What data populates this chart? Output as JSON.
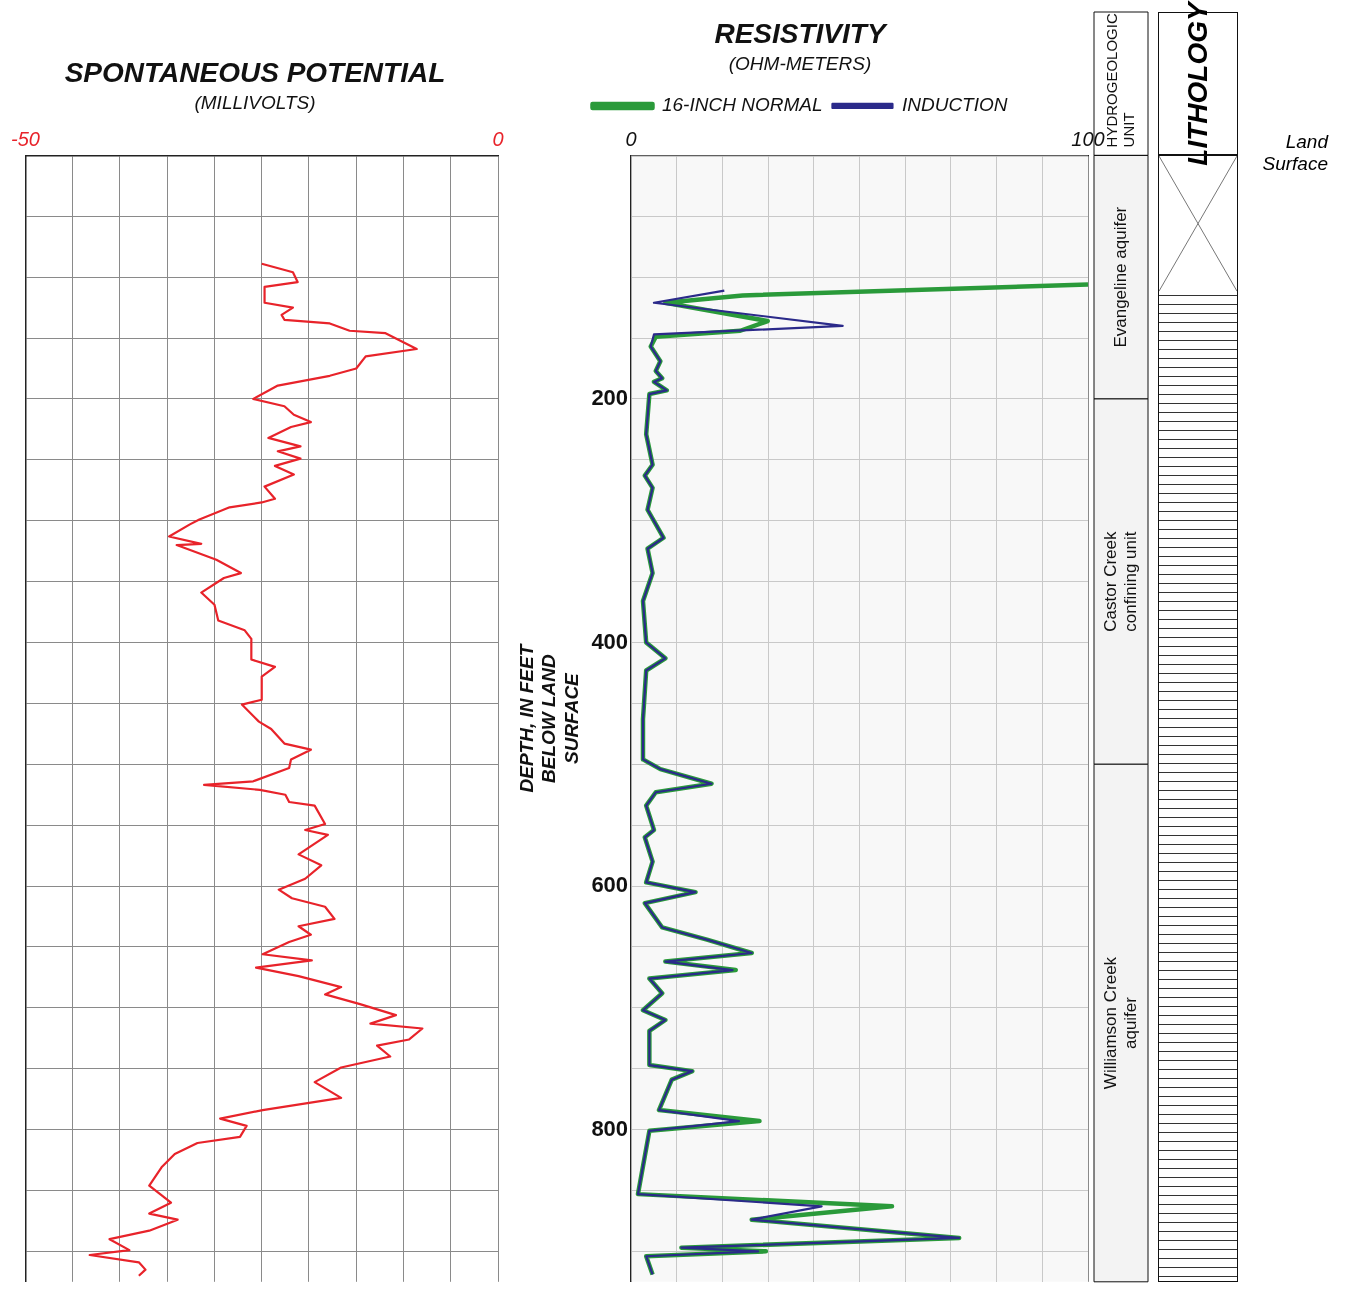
{
  "chart_data": [
    {
      "type": "line",
      "title": "SPONTANEOUS POTENTIAL",
      "subtitle": "(MILLIVOLTS)",
      "xlim": [
        -50,
        0
      ],
      "xticks": [
        -50,
        {
          "value": -45,
          "label": null
        },
        {
          "value": -40,
          "label": null
        },
        {
          "value": -35,
          "label": null
        },
        {
          "value": -30,
          "label": null
        },
        {
          "value": -25,
          "label": null
        },
        {
          "value": -20,
          "label": null
        },
        {
          "value": -15,
          "label": null
        },
        {
          "value": -10,
          "label": null
        },
        {
          "value": -5,
          "label": null
        },
        0
      ],
      "ylim": [
        925,
        0
      ],
      "yticks": [
        {
          "value": 0,
          "label": null
        },
        {
          "value": 50,
          "label": null
        },
        {
          "value": 100,
          "label": null
        },
        {
          "value": 150,
          "label": null
        },
        {
          "value": 200,
          "label": null
        },
        {
          "value": 250,
          "label": null
        },
        {
          "value": 300,
          "label": null
        },
        {
          "value": 350,
          "label": null
        },
        {
          "value": 400,
          "label": null
        },
        {
          "value": 450,
          "label": null
        },
        {
          "value": 500,
          "label": null
        },
        {
          "value": 550,
          "label": null
        },
        {
          "value": 600,
          "label": null
        },
        {
          "value": 650,
          "label": null
        },
        {
          "value": 700,
          "label": null
        },
        {
          "value": 750,
          "label": null
        },
        {
          "value": 800,
          "label": null
        },
        {
          "value": 850,
          "label": null
        },
        {
          "value": 900,
          "label": null
        }
      ],
      "tick_labels": "x",
      "grid": true,
      "legend": false,
      "series": [
        {
          "color": "#e8232a",
          "x": [
            -25,
            -21.7,
            -21.2,
            -24.7,
            -24.7,
            -21.7,
            -22.9,
            -22.6,
            -17.8,
            -15.7,
            -11.9,
            -8.6,
            -14,
            -15,
            -17.8,
            -23.3,
            -25.9,
            -22.6,
            -21.6,
            -19.8,
            -21.9,
            -24.3,
            -20.9,
            -23.3,
            -20.9,
            -23.6,
            -21.6,
            -24.7,
            -23.6,
            -25,
            -28.4,
            -31.6,
            -32.6,
            -34.8,
            -31.4,
            -34,
            -29.8,
            -27.2,
            -29,
            -31.4,
            -30,
            -29.6,
            -26.8,
            -26.1,
            -26.1,
            -23.6,
            -25,
            -25,
            -27.1,
            -25.3,
            -24,
            -22.6,
            -19.8,
            -21.9,
            -22.1,
            -25.9,
            -31.1,
            -25.2,
            -22.5,
            -22.1,
            -19.4,
            -18.3,
            -20.4,
            -18,
            -21.1,
            -18.7,
            -20.4,
            -23.2,
            -21.8,
            -18.3,
            -17.3,
            -21.1,
            -19.8,
            -22.1,
            -24.9,
            -19.7,
            -25.6,
            -21.1,
            -16.6,
            -18.3,
            -14.6,
            -10.8,
            -13.5,
            -8,
            -9.4,
            -12.8,
            -11.4,
            -16.6,
            -19.4,
            -16.6,
            -24.9,
            -29.4,
            -26.6,
            -27.3,
            -31.8,
            -34.2,
            -35.6,
            -36.9,
            -34.6,
            -36.9,
            -33.9,
            -36.9,
            -41.1,
            -39,
            -43.2,
            -38,
            -37.3,
            -38
          ],
          "values": [
            89,
            96,
            104,
            108,
            121,
            125,
            131,
            135,
            138,
            144,
            146,
            159,
            165,
            175,
            181,
            189,
            200,
            206,
            213,
            219,
            223,
            232,
            239,
            243,
            249,
            255,
            262,
            272,
            282,
            285,
            289,
            299,
            303,
            313,
            319,
            320,
            332,
            343,
            347,
            359,
            369,
            382,
            390,
            397,
            414,
            420,
            428,
            447,
            451,
            465,
            471,
            483,
            488,
            496,
            503,
            514,
            517,
            521,
            525,
            531,
            534,
            549,
            554,
            558,
            574,
            583,
            594,
            603,
            610,
            617,
            627,
            633,
            640,
            646,
            656,
            661,
            667,
            674,
            683,
            689,
            697,
            706,
            713,
            717,
            726,
            731,
            740,
            749,
            761,
            774,
            784,
            791,
            797,
            806,
            811,
            820,
            831,
            846,
            860,
            869,
            874,
            883,
            890,
            899,
            903,
            909,
            915,
            920
          ]
        }
      ]
    },
    {
      "type": "line",
      "title": "RESISTIVITY",
      "subtitle": "(OHM-METERS)",
      "ylabel": "DEPTH, IN FEET BELOW LAND SURFACE",
      "xlim": [
        0,
        100
      ],
      "xticks": [
        0,
        {
          "value": 10,
          "label": null
        },
        {
          "value": 20,
          "label": null
        },
        {
          "value": 30,
          "label": null
        },
        {
          "value": 40,
          "label": null
        },
        {
          "value": 50,
          "label": null
        },
        {
          "value": 60,
          "label": null
        },
        {
          "value": 70,
          "label": null
        },
        {
          "value": 80,
          "label": null
        },
        {
          "value": 90,
          "label": null
        },
        100
      ],
      "ylim": [
        925,
        0
      ],
      "yticks": [
        {
          "value": 0,
          "label": null
        },
        {
          "value": 50,
          "label": null
        },
        {
          "value": 100,
          "label": null
        },
        {
          "value": 150,
          "label": null
        },
        200,
        {
          "value": 250,
          "label": null
        },
        {
          "value": 300,
          "label": null
        },
        {
          "value": 350,
          "label": null
        },
        400,
        {
          "value": 450,
          "label": null
        },
        {
          "value": 500,
          "label": null
        },
        {
          "value": 550,
          "label": null
        },
        600,
        {
          "value": 650,
          "label": null
        },
        {
          "value": 700,
          "label": null
        },
        {
          "value": 750,
          "label": null
        },
        800,
        {
          "value": 850,
          "label": null
        },
        {
          "value": 900,
          "label": null
        }
      ],
      "grid": true,
      "legend": "top",
      "series": [
        {
          "name": "16-INCH NORMAL",
          "color": "#2a9a3a",
          "x": [
            100,
            24.4,
            7.5,
            29.9,
            23.9,
            5.4,
            4.3,
            6.4,
            5.4,
            6.8,
            5.0,
            7.8,
            4.0,
            3.3,
            4.7,
            3.0,
            4.7,
            3.6,
            7.1,
            3.6,
            4.7,
            2.6,
            3.3,
            7.5,
            3.3,
            2.6,
            2.6,
            6.4,
            17.6,
            5.4,
            3.3,
            5.0,
            3.0,
            4.7,
            3.3,
            14.1,
            3.0,
            6.8,
            16.6,
            26.4,
            7.5,
            22.9,
            4.0,
            6.8,
            2.6,
            7.5,
            4.0,
            4.0,
            13.4,
            8.9,
            6.1,
            28.1,
            4.0,
            1.5,
            57.1,
            26.4,
            71.8,
            11.0,
            29.5,
            3.3,
            4.7
          ],
          "values": [
            106,
            115,
            121,
            136,
            144,
            149,
            157,
            169,
            177,
            183,
            186,
            193,
            196,
            229,
            254,
            263,
            273,
            291,
            314,
            323,
            343,
            366,
            400,
            413,
            423,
            463,
            496,
            504,
            516,
            523,
            534,
            554,
            560,
            580,
            597,
            605,
            614,
            634,
            644,
            655,
            662,
            669,
            676,
            688,
            702,
            710,
            719,
            747,
            752,
            759,
            784,
            793,
            801,
            853,
            863,
            874,
            889,
            897,
            900,
            904,
            919
          ]
        },
        {
          "name": "INDUCTION",
          "color": "#2b2a8a",
          "x": [
            20.4,
            5.0,
            46.3,
            5.0,
            4.3,
            6.4,
            5.4,
            6.8,
            5.0,
            7.8,
            4.0,
            3.3,
            4.7,
            3.0,
            4.7,
            3.6,
            7.1,
            3.6,
            4.7,
            2.6,
            3.3,
            7.5,
            3.3,
            2.6,
            2.6,
            6.4,
            17.6,
            5.4,
            3.3,
            5.0,
            3.0,
            4.7,
            3.3,
            14.1,
            3.0,
            6.8,
            16.6,
            26.4,
            7.5,
            22.2,
            4.0,
            6.8,
            2.6,
            7.5,
            4.0,
            4.0,
            13.4,
            8.9,
            6.1,
            23.6,
            4.0,
            1.5,
            41.7,
            26.4,
            71.8,
            11.0,
            27.8,
            3.3,
            4.7
          ],
          "values": [
            111,
            121,
            140,
            147,
            157,
            169,
            177,
            183,
            186,
            193,
            196,
            229,
            254,
            263,
            273,
            291,
            314,
            323,
            343,
            366,
            400,
            413,
            423,
            463,
            496,
            504,
            516,
            523,
            534,
            554,
            560,
            580,
            597,
            605,
            614,
            634,
            644,
            655,
            662,
            669,
            676,
            688,
            702,
            710,
            719,
            747,
            752,
            759,
            784,
            793,
            801,
            853,
            863,
            874,
            889,
            897,
            900,
            904,
            919
          ]
        }
      ],
      "bands": [
        {
          "axis": "y",
          "from": 0,
          "to": 200,
          "label": "Evangeline aquifer",
          "color": "#f3f3f3"
        },
        {
          "axis": "y",
          "from": 200,
          "to": 500,
          "label": "Castor Creek confining unit",
          "color": "#f3f3f3"
        },
        {
          "axis": "y",
          "from": 500,
          "to": 925,
          "label": "Williamson Creek aquifer",
          "color": "#f3f3f3"
        }
      ],
      "annotations": [
        "HYDROGEOLOGIC UNIT",
        "LITHOLOGY",
        "Land Surface"
      ]
    }
  ]
}
